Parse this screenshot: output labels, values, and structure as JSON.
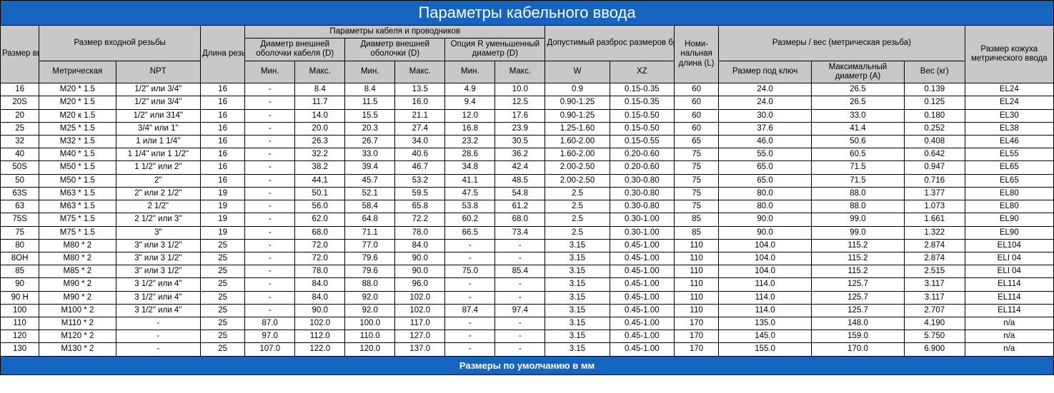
{
  "title": "Параметры кабельного ввода",
  "footer": "Размеры по умолчанию в мм",
  "colors": {
    "header_bg": "#1565c0",
    "header_text": "#ffffff",
    "th_bg": "#c8c8c8",
    "cell_bg": "#ffffff",
    "border": "#000000"
  },
  "fonts": {
    "title_size_pt": 22,
    "footer_size_pt": 13,
    "cell_size_pt": 11.5
  },
  "headers": {
    "size": "Размер ввода",
    "thread_group": "Размер входной резьбы",
    "metric": "Метрическая",
    "npt": "NPT",
    "iso": "Длина резьбы ISO (B)",
    "cable_group": "Параметры кабеля и проводников",
    "outerD1": "Диаметр внешней оболочки кабеля (D)",
    "outerD2": "Диаметр внешней оболочки (D)",
    "optR": "Опция R уменьшенный диаметр (D)",
    "min": "Мин.",
    "max": "Макс.",
    "armour_group": "Допустимый разброс размеров брони",
    "w": "W",
    "xz": "XZ",
    "nomL": "Номи-нальная длина (L)",
    "dim_group": "Размеры / вес (метрическая резьба)",
    "key": "Размер под ключ",
    "maxA": "Максимальный диаметр (А)",
    "weight": "Вес (кг)",
    "shroud": "Размер кожуха метрического ввода"
  },
  "rows": [
    {
      "size": "16",
      "metric": "M20 * 1.5",
      "npt": "1/2\" или 3/4\"",
      "iso": "16",
      "d1min": "-",
      "d1max": "8.4",
      "d2min": "8.4",
      "d2max": "13.5",
      "rmin": "4.9",
      "rmax": "10.0",
      "w": "0.9",
      "xz": "0.15-0.35",
      "l": "60",
      "key": "24.0",
      "maxA": "26.5",
      "wt": "0.139",
      "shroud": "EL24"
    },
    {
      "size": "20S",
      "metric": "M20 * 1.5",
      "npt": "1/2\" или 3/4\"",
      "iso": "16",
      "d1min": "-",
      "d1max": "11.7",
      "d2min": "11.5",
      "d2max": "16.0",
      "rmin": "9.4",
      "rmax": "12.5",
      "w": "0.90-1.25",
      "xz": "0.15-0.35",
      "l": "60",
      "key": "24.0",
      "maxA": "26.5",
      "wt": "0.125",
      "shroud": "EL24"
    },
    {
      "size": "20",
      "metric": "М20 к 1.5",
      "npt": "1/2\" или 314\"",
      "iso": "16",
      "d1min": "-",
      "d1max": "14.0",
      "d2min": "15.5",
      "d2max": "21.1",
      "rmin": "12.0",
      "rmax": "17.6",
      "w": "0.90-1.25",
      "xz": "0.15-0.50",
      "l": "60",
      "key": "30.0",
      "maxA": "33.0",
      "wt": "0.180",
      "shroud": "EL30"
    },
    {
      "size": "25",
      "metric": "М25 * 1.5",
      "npt": "3/4\" или 1\"",
      "iso": "16",
      "d1min": "-",
      "d1max": "20.0",
      "d2min": "20.3",
      "d2max": "27.4",
      "rmin": "16.8",
      "rmax": "23.9",
      "w": "1.25-1.60",
      "xz": "0.15-0.50",
      "l": "60",
      "key": "37.6",
      "maxA": "41.4",
      "wt": "0.252",
      "shroud": "EL38"
    },
    {
      "size": "32",
      "metric": "М32 * 1.5",
      "npt": "1 или 1 1/4\"",
      "iso": "16",
      "d1min": "-",
      "d1max": "26.3",
      "d2min": "26.7",
      "d2max": "34.0",
      "rmin": "23.2",
      "rmax": "30.5",
      "w": "1.60-2.00",
      "xz": "0.15-0.55",
      "l": "65",
      "key": "46.0",
      "maxA": "50.6",
      "wt": "0.408",
      "shroud": "EL46"
    },
    {
      "size": "40",
      "metric": "М40 * 1.5",
      "npt": "1 1/4\" или 1 1/2\"",
      "iso": "16",
      "d1min": "-",
      "d1max": "32.2",
      "d2min": "33.0",
      "d2max": "40.6",
      "rmin": "28.6",
      "rmax": "36.2",
      "w": "1.60-2.00",
      "xz": "0.20-0.60",
      "l": "75",
      "key": "55.0",
      "maxA": "60.5",
      "wt": "0.642",
      "shroud": "EL55"
    },
    {
      "size": "50S",
      "metric": "М50 * 1.5",
      "npt": "1 1/2\" или 2\"",
      "iso": "16",
      "d1min": "-",
      "d1max": "38.2",
      "d2min": "39.4",
      "d2max": "46.7",
      "rmin": "34.8",
      "rmax": "42.4",
      "w": "2.00-2.50",
      "xz": "0.20-0.60",
      "l": "75",
      "key": "65.0",
      "maxA": "71.5",
      "wt": "0.947",
      "shroud": "EL65"
    },
    {
      "size": "50",
      "metric": "М50 * 1.5",
      "npt": "2\"",
      "iso": "16",
      "d1min": "-",
      "d1max": "44.1",
      "d2min": "45.7",
      "d2max": "53.2",
      "rmin": "41.1",
      "rmax": "48.5",
      "w": "2.00-2.50",
      "xz": "0.30-0.80",
      "l": "75",
      "key": "65.0",
      "maxA": "71.5",
      "wt": "0.716",
      "shroud": "EL65"
    },
    {
      "size": "63S",
      "metric": "М63 * 1.5",
      "npt": "2\" или 2 1/2\"",
      "iso": "19",
      "d1min": "-",
      "d1max": "50.1",
      "d2min": "52.1",
      "d2max": "59.5",
      "rmin": "47.5",
      "rmax": "54.8",
      "w": "2.5",
      "xz": "0.30-0.80",
      "l": "75",
      "key": "80.0",
      "maxA": "88.0",
      "wt": "1.377",
      "shroud": "EL80"
    },
    {
      "size": "63",
      "metric": "М63 * 1.5",
      "npt": "2 1/2\"",
      "iso": "19",
      "d1min": "-",
      "d1max": "56.0",
      "d2min": "58.4",
      "d2max": "65.8",
      "rmin": "53.8",
      "rmax": "61.2",
      "w": "2.5",
      "xz": "0.30-0.80",
      "l": "75",
      "key": "80.0",
      "maxA": "88.0",
      "wt": "1.073",
      "shroud": "EL80"
    },
    {
      "size": "75S",
      "metric": "М75 * 1.5",
      "npt": "2 1/2\" или 3\"",
      "iso": "19",
      "d1min": "-",
      "d1max": "62.0",
      "d2min": "64.8",
      "d2max": "72.2",
      "rmin": "60.2",
      "rmax": "68.0",
      "w": "2.5",
      "xz": "0.30-1.00",
      "l": "85",
      "key": "90.0",
      "maxA": "99.0",
      "wt": "1.661",
      "shroud": "EL90"
    },
    {
      "size": "75",
      "metric": "М75 * 1.5",
      "npt": "3\"",
      "iso": "19",
      "d1min": "-",
      "d1max": "68.0",
      "d2min": "71.1",
      "d2max": "78.0",
      "rmin": "66.5",
      "rmax": "73.4",
      "w": "2.5",
      "xz": "0.30-1.00",
      "l": "85",
      "key": "90.0",
      "maxA": "99.0",
      "wt": "1.322",
      "shroud": "EL90"
    },
    {
      "size": "80",
      "metric": "М80 * 2",
      "npt": "3\" или 3 1/2\"",
      "iso": "25",
      "d1min": "-",
      "d1max": "72.0",
      "d2min": "77.0",
      "d2max": "84.0",
      "rmin": "-",
      "rmax": "-",
      "w": "3.15",
      "xz": "0.45-1.00",
      "l": "110",
      "key": "104.0",
      "maxA": "115.2",
      "wt": "2.874",
      "shroud": "EL104"
    },
    {
      "size": "8ОН",
      "metric": "М80 * 2",
      "npt": "3\" или 3 1/2\"",
      "iso": "25",
      "d1min": "-",
      "d1max": "72.0",
      "d2min": "79.6",
      "d2max": "90.0",
      "rmin": "-",
      "rmax": "-",
      "w": "3.15",
      "xz": "0.45-1.00",
      "l": "110",
      "key": "104.0",
      "maxA": "115.2",
      "wt": "2.874",
      "shroud": "ELI 04"
    },
    {
      "size": "85",
      "metric": "М85 * 2",
      "npt": "3\" или 3 1/2\"",
      "iso": "25",
      "d1min": "-",
      "d1max": "78.0",
      "d2min": "79.6",
      "d2max": "90.0",
      "rmin": "75.0",
      "rmax": "85.4",
      "w": "3.15",
      "xz": "0.45-1.00",
      "l": "110",
      "key": "104.0",
      "maxA": "115.2",
      "wt": "2.515",
      "shroud": "ELI 04"
    },
    {
      "size": "90",
      "metric": "М90 * 2",
      "npt": "3 1/2\" или 4\"",
      "iso": "25",
      "d1min": "-",
      "d1max": "84.0",
      "d2min": "88.0",
      "d2max": "96.0",
      "rmin": "-",
      "rmax": "-",
      "w": "3.15",
      "xz": "0.45-1.00",
      "l": "110",
      "key": "114.0",
      "maxA": "125.7",
      "wt": "3.117",
      "shroud": "EL114"
    },
    {
      "size": "90 Н",
      "metric": "М90 * 2",
      "npt": "3 1/2\" или 4\"",
      "iso": "25",
      "d1min": "-",
      "d1max": "84.0",
      "d2min": "92.0",
      "d2max": "102.0",
      "rmin": "-",
      "rmax": "-",
      "w": "3.15",
      "xz": "0.45-1.00",
      "l": "110",
      "key": "114.0",
      "maxA": "125.7",
      "wt": "3.117",
      "shroud": "EL114"
    },
    {
      "size": "100",
      "metric": "М100 * 2",
      "npt": "3 1/2\" или 4\"",
      "iso": "25",
      "d1min": "-",
      "d1max": "90.0",
      "d2min": "92.0",
      "d2max": "102.0",
      "rmin": "87.4",
      "rmax": "97.4",
      "w": "3.15",
      "xz": "0.45-1.00",
      "l": "110",
      "key": "114.0",
      "maxA": "125.7",
      "wt": "2.707",
      "shroud": "EL114"
    },
    {
      "size": "110",
      "metric": "М110 * 2",
      "npt": "-",
      "iso": "25",
      "d1min": "87.0",
      "d1max": "102.0",
      "d2min": "100.0",
      "d2max": "117.0",
      "rmin": "-",
      "rmax": "-",
      "w": "3.15",
      "xz": "0.45-1.00",
      "l": "170",
      "key": "135.0",
      "maxA": "148.0",
      "wt": "4.190",
      "shroud": "n/а"
    },
    {
      "size": "120",
      "metric": "М120 * 2",
      "npt": "-",
      "iso": "25",
      "d1min": "97.0",
      "d1max": "112.0",
      "d2min": "110.0",
      "d2max": "127.0",
      "rmin": "-",
      "rmax": "-",
      "w": "3.15",
      "xz": "0.45-1.00",
      "l": "170",
      "key": "145.0",
      "maxA": "159.0",
      "wt": "5.750",
      "shroud": "n/а"
    },
    {
      "size": "130",
      "metric": "М130 * 2",
      "npt": "-",
      "iso": "25",
      "d1min": "107.0",
      "d1max": "122.0",
      "d2min": "120.0",
      "d2max": "137.0",
      "rmin": "-",
      "rmax": "-",
      "w": "3.15",
      "xz": "0.45-1.00",
      "l": "170",
      "key": "155.0",
      "maxA": "170.0",
      "wt": "6.900",
      "shroud": "n/a"
    }
  ]
}
